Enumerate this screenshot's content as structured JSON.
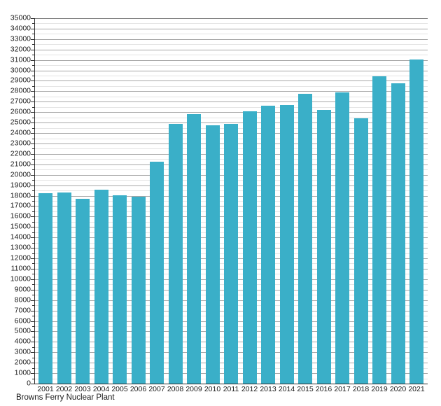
{
  "chart_data": {
    "type": "bar",
    "title": "",
    "footer_label": "Browns Ferry Nuclear Plant",
    "xlabel": "",
    "ylabel": "",
    "categories": [
      "2001",
      "2002",
      "2003",
      "2004",
      "2005",
      "2006",
      "2007",
      "2008",
      "2009",
      "2010",
      "2011",
      "2012",
      "2013",
      "2014",
      "2015",
      "2016",
      "2017",
      "2018",
      "2019",
      "2020",
      "2021"
    ],
    "values": [
      18250,
      18300,
      17700,
      18550,
      18050,
      17900,
      21250,
      24900,
      25800,
      24750,
      24850,
      26100,
      26650,
      26700,
      27750,
      26250,
      27900,
      25400,
      29450,
      28750,
      31050
    ],
    "ylim": [
      0,
      35000
    ],
    "y_major_step": 1000,
    "y_minor_step": 500,
    "grid": "horizontal-major-and-minor",
    "legend_position": "none",
    "colors": {
      "bar": "#3AAFC8",
      "major_grid": "#a6a6a6",
      "minor_grid": "#e4e4e4",
      "top_border": "#7d7d7d",
      "axis": "#2e2e2e",
      "text": "#1a1a1a"
    }
  }
}
